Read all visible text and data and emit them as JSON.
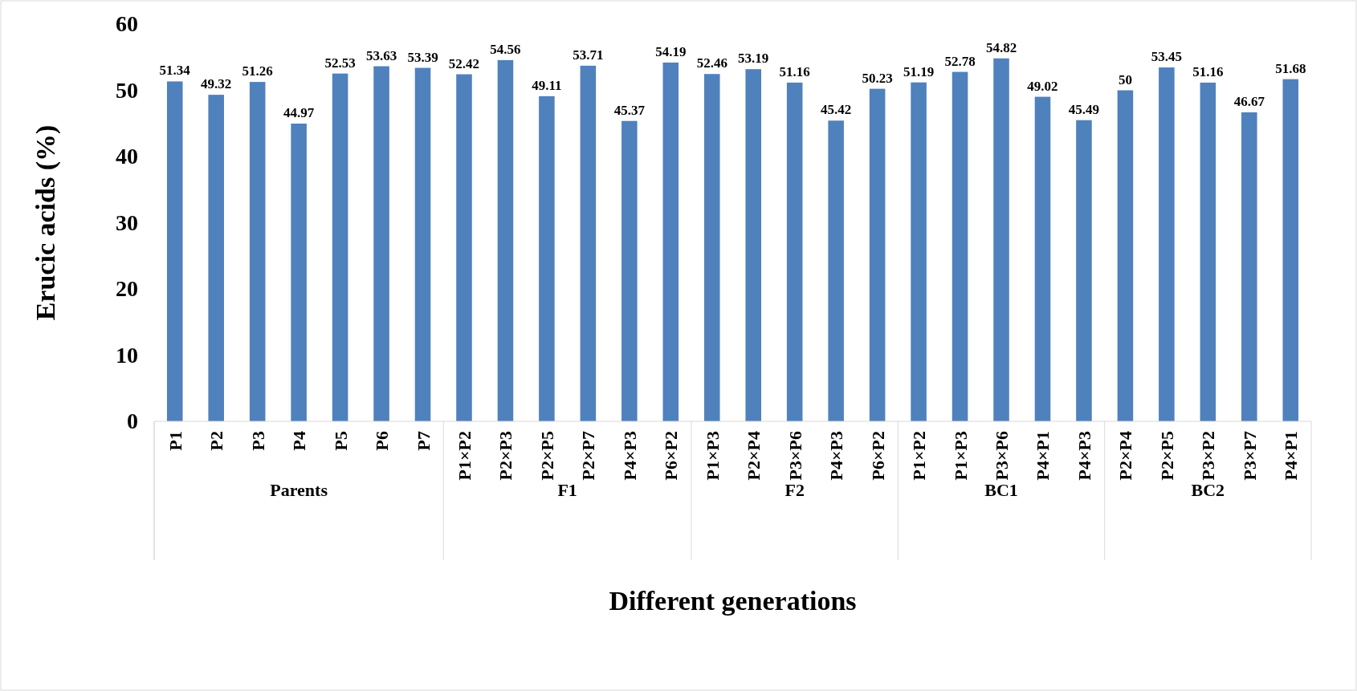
{
  "chart_data": {
    "type": "bar",
    "xlabel": "Different generations",
    "ylabel": "Erucic acids (%)",
    "categories": [
      "P1",
      "P2",
      "P3",
      "P4",
      "P5",
      "P6",
      "P7",
      "P1×P2",
      "P2×P3",
      "P2×P5",
      "P2×P7",
      "P4×P3",
      "P6×P2",
      "P1×P3",
      "P2×P4",
      "P3×P6",
      "P4×P3",
      "P6×P2",
      "P1×P2",
      "P1×P3",
      "P3×P6",
      "P4×P1",
      "P4×P3",
      "P2×P4",
      "P2×P5",
      "P3×P2",
      "P3×P7",
      "P4×P1"
    ],
    "values": [
      51.34,
      49.32,
      51.26,
      44.97,
      52.53,
      53.63,
      53.39,
      52.42,
      54.56,
      49.11,
      53.71,
      45.37,
      54.19,
      52.46,
      53.19,
      51.16,
      45.42,
      50.23,
      51.19,
      52.78,
      54.82,
      49.02,
      45.49,
      50,
      53.45,
      51.16,
      46.67,
      51.68
    ],
    "value_labels": [
      "51.34",
      "49.32",
      "51.26",
      "44.97",
      "52.53",
      "53.63",
      "53.39",
      "52.42",
      "54.56",
      "49.11",
      "53.71",
      "45.37",
      "54.19",
      "52.46",
      "53.19",
      "51.16",
      "45.42",
      "50.23",
      "51.19",
      "52.78",
      "54.82",
      "49.02",
      "45.49",
      "50",
      "53.45",
      "51.16",
      "46.67",
      "51.68"
    ],
    "color": "#4f81bd",
    "ylim": [
      0,
      60
    ],
    "yticks": [
      0,
      10,
      20,
      30,
      40,
      50,
      60
    ],
    "annotations": [
      "Parents",
      "F1",
      "F2",
      "BC1",
      "BC2"
    ]
  }
}
